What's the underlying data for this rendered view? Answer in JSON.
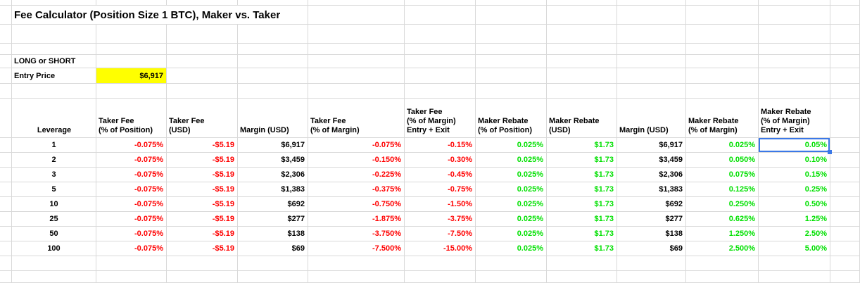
{
  "title": "Fee Calculator (Position Size 1 BTC), Maker vs. Taker",
  "labels": {
    "long_or_short": "LONG or SHORT",
    "entry_price": "Entry Price"
  },
  "entry_price_value": "$6,917",
  "colors": {
    "highlight": "#ffff00",
    "negative": "#ff0000",
    "positive": "#00e000",
    "neutral": "#000000",
    "selection": "#3b78e7",
    "gridline": "#d9d9d9"
  },
  "table": {
    "columns": [
      {
        "header_lines": [
          "Leverage"
        ],
        "align": "center",
        "value_color": "neutral"
      },
      {
        "header_lines": [
          "Taker Fee",
          "(% of Position)"
        ],
        "align": "right",
        "value_color": "negative"
      },
      {
        "header_lines": [
          "Taker Fee",
          "(USD)"
        ],
        "align": "right",
        "value_color": "negative"
      },
      {
        "header_lines": [
          "Margin (USD)"
        ],
        "align": "right",
        "value_color": "neutral"
      },
      {
        "header_lines": [
          "Taker Fee",
          "(% of Margin)"
        ],
        "align": "right",
        "value_color": "negative"
      },
      {
        "header_lines": [
          "Taker Fee",
          "(% of Margin)",
          "Entry + Exit"
        ],
        "align": "right",
        "value_color": "negative"
      },
      {
        "header_lines": [
          "Maker Rebate",
          "(% of Position)"
        ],
        "align": "right",
        "value_color": "positive"
      },
      {
        "header_lines": [
          "Maker Rebate",
          "(USD)"
        ],
        "align": "right",
        "value_color": "positive"
      },
      {
        "header_lines": [
          "Margin (USD)"
        ],
        "align": "right",
        "value_color": "neutral"
      },
      {
        "header_lines": [
          "Maker Rebate",
          "(% of Margin)"
        ],
        "align": "right",
        "value_color": "positive"
      },
      {
        "header_lines": [
          "Maker Rebate",
          "(% of Margin)",
          "Entry + Exit"
        ],
        "align": "right",
        "value_color": "positive"
      }
    ],
    "rows": [
      [
        "1",
        "-0.075%",
        "-$5.19",
        "$6,917",
        "-0.075%",
        "-0.15%",
        "0.025%",
        "$1.73",
        "$6,917",
        "0.025%",
        "0.05%"
      ],
      [
        "2",
        "-0.075%",
        "-$5.19",
        "$3,459",
        "-0.150%",
        "-0.30%",
        "0.025%",
        "$1.73",
        "$3,459",
        "0.050%",
        "0.10%"
      ],
      [
        "3",
        "-0.075%",
        "-$5.19",
        "$2,306",
        "-0.225%",
        "-0.45%",
        "0.025%",
        "$1.73",
        "$2,306",
        "0.075%",
        "0.15%"
      ],
      [
        "5",
        "-0.075%",
        "-$5.19",
        "$1,383",
        "-0.375%",
        "-0.75%",
        "0.025%",
        "$1.73",
        "$1,383",
        "0.125%",
        "0.25%"
      ],
      [
        "10",
        "-0.075%",
        "-$5.19",
        "$692",
        "-0.750%",
        "-1.50%",
        "0.025%",
        "$1.73",
        "$692",
        "0.250%",
        "0.50%"
      ],
      [
        "25",
        "-0.075%",
        "-$5.19",
        "$277",
        "-1.875%",
        "-3.75%",
        "0.025%",
        "$1.73",
        "$277",
        "0.625%",
        "1.25%"
      ],
      [
        "50",
        "-0.075%",
        "-$5.19",
        "$138",
        "-3.750%",
        "-7.50%",
        "0.025%",
        "$1.73",
        "$138",
        "1.250%",
        "2.50%"
      ],
      [
        "100",
        "-0.075%",
        "-$5.19",
        "$69",
        "-7.500%",
        "-15.00%",
        "0.025%",
        "$1.73",
        "$69",
        "2.500%",
        "5.00%"
      ]
    ]
  },
  "selection": {
    "row_index": 0,
    "col_index": 10,
    "value": "0.05%"
  }
}
